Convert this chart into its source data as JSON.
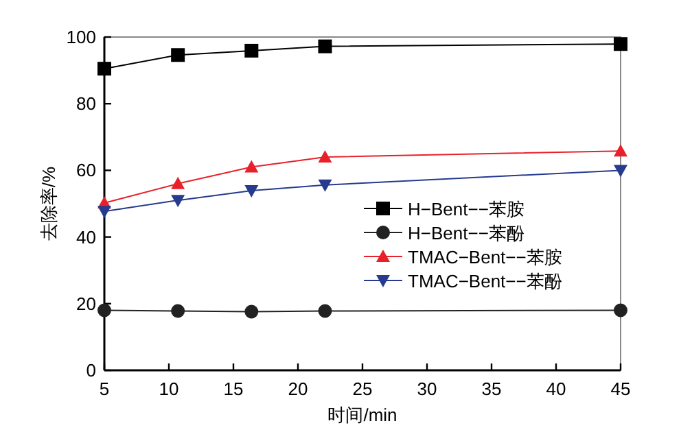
{
  "chart_data": {
    "type": "line",
    "xlabel": "时间/min",
    "ylabel": "去除率/%",
    "x": [
      5,
      10.7,
      16.4,
      22.1,
      45
    ],
    "series": [
      {
        "name": "H−Bent−−苯胺",
        "color": "#000000",
        "marker": "square",
        "values": [
          90.5,
          94.6,
          95.9,
          97.2,
          97.9
        ]
      },
      {
        "name": "H−Bent−−苯酚",
        "color": "#222222",
        "marker": "circle",
        "values": [
          18,
          17.8,
          17.6,
          17.8,
          18
        ]
      },
      {
        "name": "TMAC−Bent−−苯胺",
        "color": "#e8202a",
        "marker": "triangle",
        "values": [
          50.2,
          56,
          61,
          64,
          65.8
        ]
      },
      {
        "name": "TMAC−Bent−−苯酚",
        "color": "#263a8e",
        "marker": "triangle_down",
        "values": [
          47.7,
          51,
          53.9,
          55.6,
          60
        ]
      }
    ],
    "xlim": [
      5,
      45
    ],
    "xticks": [
      5,
      10,
      15,
      20,
      25,
      30,
      35,
      40,
      45
    ],
    "ylim": [
      0,
      100
    ],
    "yticks": [
      0,
      20,
      40,
      60,
      80,
      100
    ],
    "grid": false,
    "legend": "right",
    "line_style": "solid"
  }
}
